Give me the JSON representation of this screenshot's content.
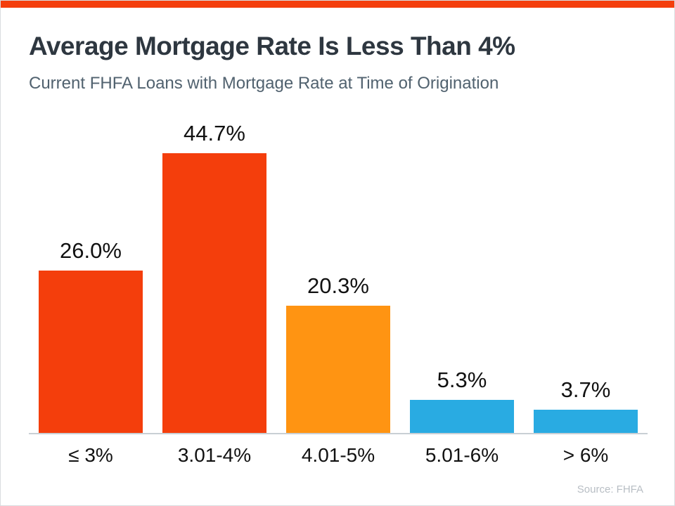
{
  "page": {
    "title": "Average Mortgage Rate Is Less Than 4%",
    "subtitle": "Current FHFA Loans with Mortgage Rate at Time of Origination",
    "source": "Source: FHFA"
  },
  "colors": {
    "accent_bar": "#F43E0C",
    "axis": "#C9CFD4",
    "title": "#2E3740",
    "subtitle": "#51626F",
    "labels": "#111111",
    "source": "#B8BEC4"
  },
  "chart_data": {
    "type": "bar",
    "categories": [
      "≤ 3%",
      "3.01-4%",
      "4.01-5%",
      "5.01-6%",
      "> 6%"
    ],
    "values": [
      26.0,
      44.7,
      20.3,
      5.3,
      3.7
    ],
    "value_labels": [
      "26.0%",
      "44.7%",
      "20.3%",
      "5.3%",
      "3.7%"
    ],
    "bar_colors": [
      "#F43E0C",
      "#F43E0C",
      "#FF9412",
      "#29ABE2",
      "#29ABE2"
    ],
    "title": "Average Mortgage Rate Is Less Than 4%",
    "xlabel": "",
    "ylabel": "",
    "ylim": [
      0,
      45
    ],
    "grid": false,
    "legend": false
  }
}
